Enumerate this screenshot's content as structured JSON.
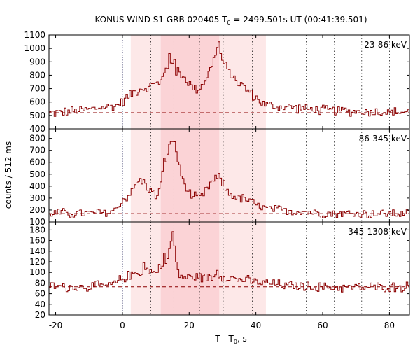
{
  "chart_data": {
    "type": "line",
    "title": "KONUS-WIND S1 GRB 020405 T",
    "title_sub": "0",
    "title_rest": " = 2499.501s UT (00:41:39.501)",
    "xlabel": "T - T",
    "xlabel_sub": "0",
    "xlabel_rest": ", s",
    "ylabel": "counts / 512 ms",
    "xlim": [
      -22,
      86
    ],
    "xticks": [
      -20,
      0,
      20,
      40,
      60,
      80
    ],
    "bin_width": 0.512,
    "t0_line": 0,
    "grid_x": [
      8.5,
      15.4,
      23.1,
      30.2,
      38.9,
      46.9,
      55.1,
      63.5,
      71.7,
      80
    ],
    "bands": [
      {
        "x0": 2.5,
        "x1": 43,
        "color": "#fde8e8"
      },
      {
        "x0": 11.5,
        "x1": 29,
        "color": "#fbd3d6"
      }
    ],
    "line_color": "#8b0000",
    "panels": [
      {
        "label": "23-86 keV",
        "ylim": [
          400,
          1100
        ],
        "yticks": [
          400,
          500,
          600,
          700,
          800,
          900,
          1000,
          1100
        ],
        "background": 520,
        "anchors": [
          [
            -22,
            518
          ],
          [
            -20,
            520
          ],
          [
            -15,
            530
          ],
          [
            -10,
            545
          ],
          [
            -5,
            565
          ],
          [
            -2,
            570
          ],
          [
            0,
            600
          ],
          [
            2,
            650
          ],
          [
            4,
            680
          ],
          [
            6,
            710
          ],
          [
            8,
            700
          ],
          [
            10,
            760
          ],
          [
            11,
            720
          ],
          [
            12,
            780
          ],
          [
            13,
            840
          ],
          [
            14,
            880
          ],
          [
            15,
            920
          ],
          [
            16,
            860
          ],
          [
            17,
            830
          ],
          [
            18,
            800
          ],
          [
            19,
            770
          ],
          [
            20,
            740
          ],
          [
            21,
            710
          ],
          [
            22,
            700
          ],
          [
            23,
            700
          ],
          [
            24,
            730
          ],
          [
            25,
            780
          ],
          [
            26,
            820
          ],
          [
            27,
            880
          ],
          [
            28,
            980
          ],
          [
            28.8,
            1035
          ],
          [
            29.6,
            940
          ],
          [
            30.5,
            880
          ],
          [
            31.5,
            840
          ],
          [
            33,
            790
          ],
          [
            35,
            740
          ],
          [
            37,
            700
          ],
          [
            39,
            650
          ],
          [
            41,
            610
          ],
          [
            43,
            580
          ],
          [
            45,
            570
          ],
          [
            47,
            560
          ],
          [
            50,
            565
          ],
          [
            53,
            555
          ],
          [
            56,
            545
          ],
          [
            60,
            540
          ],
          [
            65,
            535
          ],
          [
            70,
            530
          ],
          [
            75,
            528
          ],
          [
            80,
            525
          ],
          [
            86,
            525
          ]
        ],
        "spikes": [
          [
            14.3,
            970
          ],
          [
            16.2,
            800
          ],
          [
            28.8,
            1035
          ],
          [
            19.6,
            740
          ]
        ]
      },
      {
        "label": "86-345 keV",
        "ylim": [
          100,
          880
        ],
        "yticks": [
          100,
          200,
          300,
          400,
          500,
          600,
          700,
          800
        ],
        "background": 170,
        "anchors": [
          [
            -22,
            175
          ],
          [
            -10,
            170
          ],
          [
            -4,
            178
          ],
          [
            -2,
            205
          ],
          [
            0,
            280
          ],
          [
            2,
            330
          ],
          [
            3,
            360
          ],
          [
            4,
            410
          ],
          [
            5,
            450
          ],
          [
            6,
            440
          ],
          [
            7,
            410
          ],
          [
            8,
            380
          ],
          [
            9,
            350
          ],
          [
            10,
            320
          ],
          [
            11,
            360
          ],
          [
            12,
            480
          ],
          [
            13,
            640
          ],
          [
            14,
            720
          ],
          [
            15,
            790
          ],
          [
            15.6,
            770
          ],
          [
            16.5,
            640
          ],
          [
            17,
            560
          ],
          [
            18,
            460
          ],
          [
            19,
            400
          ],
          [
            20,
            340
          ],
          [
            22,
            300
          ],
          [
            24,
            310
          ],
          [
            25,
            360
          ],
          [
            26,
            400
          ],
          [
            27,
            440
          ],
          [
            28,
            460
          ],
          [
            29,
            470
          ],
          [
            30,
            430
          ],
          [
            32,
            340
          ],
          [
            35,
            300
          ],
          [
            38,
            280
          ],
          [
            40,
            240
          ],
          [
            42,
            220
          ],
          [
            45,
            200
          ],
          [
            50,
            195
          ],
          [
            55,
            185
          ],
          [
            60,
            175
          ],
          [
            70,
            170
          ],
          [
            86,
            170
          ]
        ],
        "spikes": [
          [
            15.2,
            790
          ],
          [
            12.8,
            620
          ],
          [
            5,
            450
          ],
          [
            29.4,
            470
          ]
        ]
      },
      {
        "label": "345-1308 keV",
        "ylim": [
          20,
          195
        ],
        "yticks": [
          20,
          40,
          60,
          80,
          100,
          120,
          140,
          160,
          180
        ],
        "background": 73,
        "anchors": [
          [
            -22,
            75
          ],
          [
            -15,
            72
          ],
          [
            -8,
            74
          ],
          [
            -3,
            76
          ],
          [
            0,
            88
          ],
          [
            2,
            95
          ],
          [
            5,
            100
          ],
          [
            8,
            105
          ],
          [
            10,
            98
          ],
          [
            11,
            110
          ],
          [
            12,
            120
          ],
          [
            13,
            115
          ],
          [
            14,
            140
          ],
          [
            15,
            170
          ],
          [
            15.6,
            150
          ],
          [
            16.5,
            100
          ],
          [
            18,
            92
          ],
          [
            20,
            90
          ],
          [
            23,
            92
          ],
          [
            26,
            90
          ],
          [
            29,
            95
          ],
          [
            32,
            90
          ],
          [
            36,
            86
          ],
          [
            40,
            82
          ],
          [
            43,
            80
          ],
          [
            50,
            75
          ],
          [
            60,
            72
          ],
          [
            70,
            72
          ],
          [
            86,
            73
          ]
        ],
        "spikes": [
          [
            15.3,
            174
          ],
          [
            12.6,
            128
          ],
          [
            6.3,
            118
          ],
          [
            28.6,
            108
          ],
          [
            14.2,
            142
          ]
        ]
      }
    ]
  }
}
